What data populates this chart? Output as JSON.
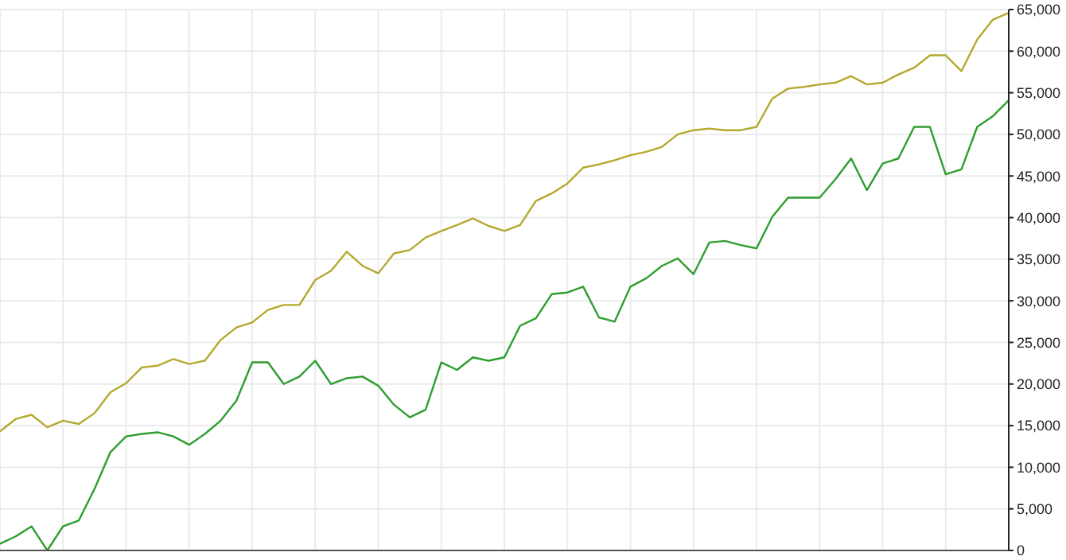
{
  "chart_data": {
    "type": "line",
    "categories": [
      null,
      null,
      null,
      null,
      null,
      null,
      null,
      null,
      null,
      null,
      null,
      null,
      null,
      null,
      null,
      null,
      null,
      null,
      null,
      null,
      null,
      null,
      null,
      null,
      null,
      null,
      null,
      null,
      null,
      null,
      null,
      null,
      null,
      null,
      null,
      null,
      null,
      null,
      null,
      null,
      null,
      null,
      null,
      null,
      null,
      null,
      null,
      null,
      null,
      null,
      null,
      null,
      null,
      null,
      null,
      null,
      null,
      null,
      null,
      null,
      null,
      null,
      null,
      null,
      null
    ],
    "series": [
      {
        "color": "#b3a92e",
        "values": [
          14300,
          15800,
          16300,
          14800,
          15600,
          15200,
          16500,
          19000,
          20100,
          22000,
          22200,
          23000,
          22400,
          22800,
          25300,
          26800,
          27400,
          28900,
          29500,
          29500,
          32500,
          33600,
          35900,
          34200,
          33300,
          35700,
          36100,
          37600,
          38400,
          39100,
          39900,
          39000,
          38400,
          39100,
          42000,
          42900,
          44100,
          46000,
          46400,
          46900,
          47500,
          47900,
          48500,
          50000,
          50500,
          50700,
          50500,
          50500,
          50900,
          54300,
          55500,
          55700,
          56000,
          56200,
          57000,
          56000,
          56200,
          57200,
          58000,
          59500,
          59500,
          57600,
          61400,
          63800,
          64600
        ]
      },
      {
        "color": "#2e9e2e",
        "values": [
          800,
          1700,
          2900,
          0,
          2900,
          3600,
          7400,
          11800,
          13700,
          14000,
          14200,
          13700,
          12700,
          14000,
          15600,
          18000,
          22600,
          22600,
          20000,
          20900,
          22800,
          20000,
          20700,
          20900,
          19800,
          17500,
          16000,
          16900,
          22600,
          21700,
          23200,
          22800,
          23200,
          27000,
          27900,
          30800,
          31000,
          31700,
          28000,
          27500,
          31700,
          32700,
          34200,
          35100,
          33200,
          37000,
          37200,
          36700,
          36300,
          40100,
          42400,
          42400,
          42400,
          44600,
          47100,
          43300,
          46500,
          47100,
          50900,
          50900,
          45200,
          45800,
          50900,
          52200,
          54100
        ]
      }
    ],
    "ylim": [
      0,
      65000
    ],
    "yticks": [
      {
        "value": 0,
        "label": "0"
      },
      {
        "value": 5000,
        "label": "5,000"
      },
      {
        "value": 10000,
        "label": "10,000"
      },
      {
        "value": 15000,
        "label": "15,000"
      },
      {
        "value": 20000,
        "label": "20,000"
      },
      {
        "value": 25000,
        "label": "25,000"
      },
      {
        "value": 30000,
        "label": "30,000"
      },
      {
        "value": 35000,
        "label": "35,000"
      },
      {
        "value": 40000,
        "label": "40,000"
      },
      {
        "value": 45000,
        "label": "45,000"
      },
      {
        "value": 50000,
        "label": "50,000"
      },
      {
        "value": 55000,
        "label": "55,000"
      },
      {
        "value": 60000,
        "label": "60,000"
      },
      {
        "value": 65000,
        "label": "65,000"
      }
    ],
    "grid": true,
    "marker": "none",
    "line_style": "solid"
  }
}
